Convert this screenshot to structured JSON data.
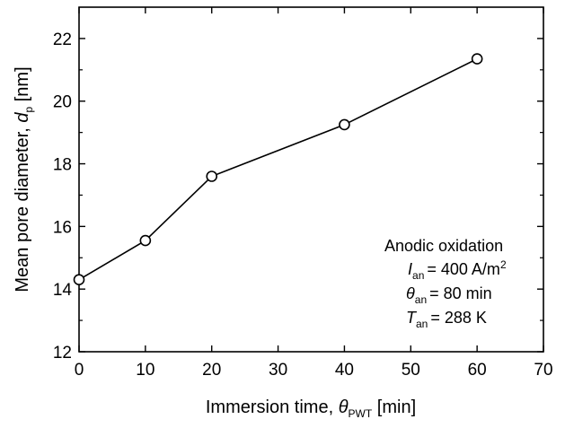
{
  "chart_data": {
    "type": "line",
    "x": [
      0,
      10,
      20,
      40,
      60
    ],
    "series": [
      {
        "values": [
          14.3,
          15.55,
          17.6,
          19.25,
          21.35
        ]
      }
    ],
    "xlim": [
      0,
      70
    ],
    "ylim": [
      12,
      23
    ],
    "x_ticks": [
      "0",
      "10",
      "20",
      "30",
      "40",
      "50",
      "60",
      "70"
    ],
    "y_ticks": [
      "12",
      "14",
      "16",
      "18",
      "20",
      "22"
    ],
    "xlabel": {
      "main": "Immersion time, ",
      "symbol": "θ",
      "subscript": "PWT",
      "units": "[min]"
    },
    "ylabel": {
      "main": "Mean pore diameter, ",
      "symbol": "d",
      "subscript": "p",
      "units": "[nm]"
    },
    "annotation": {
      "title": "Anodic oxidation",
      "lines": [
        {
          "symbol": "I",
          "subscript": "an",
          "value": "= 400 A/m",
          "superscript": "2"
        },
        {
          "symbol": "θ",
          "subscript": "an",
          "value": "= 80 min",
          "superscript": ""
        },
        {
          "symbol": "T",
          "subscript": "an",
          "value": "= 288 K",
          "superscript": ""
        }
      ]
    },
    "grid": false,
    "marker": "open-circle",
    "line_color": "#000000"
  }
}
